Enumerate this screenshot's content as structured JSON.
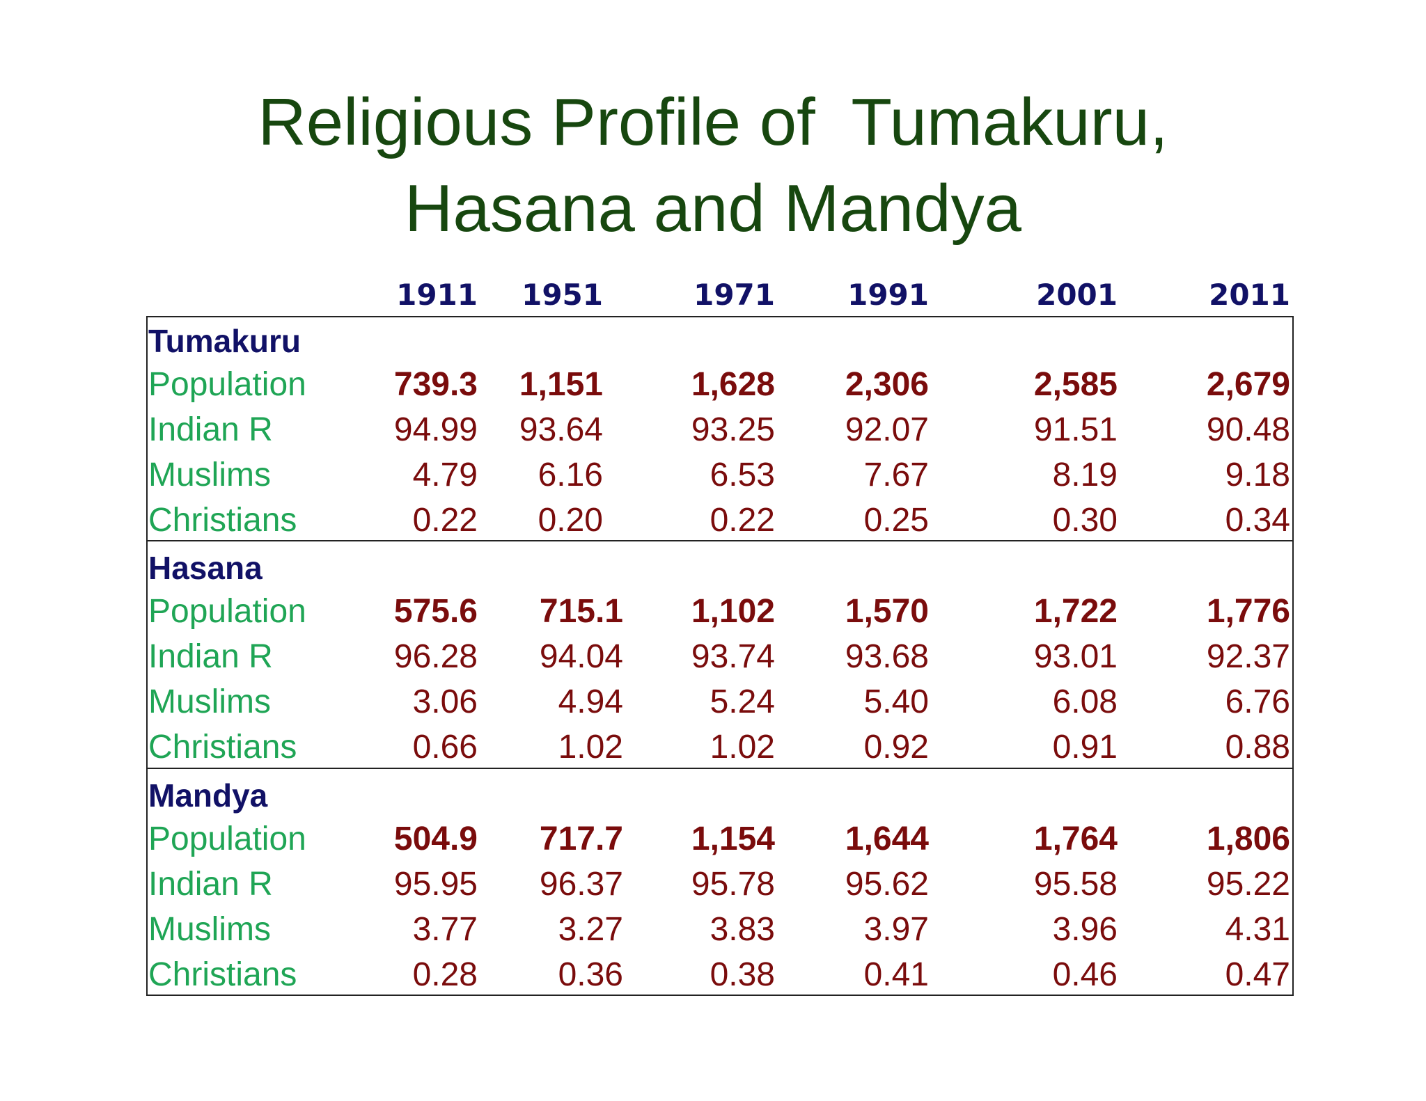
{
  "title": [
    "Religious Profile of  Tumakuru,",
    "Hasana and Mandya"
  ],
  "table": {
    "columns": [
      "1911",
      "1951",
      "1971",
      "1991",
      "2001",
      "2011"
    ],
    "sections": [
      {
        "name": "Tumakuru",
        "rows": [
          {
            "label": "Population",
            "values": [
              "739.3",
              "1,151",
              "1,628",
              "2,306",
              "2,585",
              "2,679"
            ]
          },
          {
            "label": "Indian R",
            "values": [
              "94.99",
              "93.64",
              "93.25",
              "92.07",
              "91.51",
              "90.48"
            ]
          },
          {
            "label": "Muslims",
            "values": [
              "4.79",
              "6.16",
              "6.53",
              "7.67",
              "8.19",
              "9.18"
            ]
          },
          {
            "label": "Christians",
            "values": [
              "0.22",
              "0.20",
              "0.22",
              "0.25",
              "0.30",
              "0.34"
            ]
          }
        ]
      },
      {
        "name": "Hasana",
        "rows": [
          {
            "label": "Population",
            "values": [
              "575.6",
              "715.1",
              "1,102",
              "1,570",
              "1,722",
              "1,776"
            ]
          },
          {
            "label": "Indian R",
            "values": [
              "96.28",
              "94.04",
              "93.74",
              "93.68",
              "93.01",
              "92.37"
            ]
          },
          {
            "label": "Muslims",
            "values": [
              "3.06",
              "4.94",
              "5.24",
              "5.40",
              "6.08",
              "6.76"
            ]
          },
          {
            "label": "Christians",
            "values": [
              "0.66",
              "1.02",
              "1.02",
              "0.92",
              "0.91",
              "0.88"
            ]
          }
        ]
      },
      {
        "name": "Mandya",
        "rows": [
          {
            "label": "Population",
            "values": [
              "504.9",
              "717.7",
              "1,154",
              "1,644",
              "1,764",
              "1,806"
            ]
          },
          {
            "label": "Indian R",
            "values": [
              "95.95",
              "96.37",
              "95.78",
              "95.62",
              "95.58",
              "95.22"
            ]
          },
          {
            "label": "Muslims",
            "values": [
              "3.77",
              "3.27",
              "3.83",
              "3.97",
              "3.96",
              "4.31"
            ]
          },
          {
            "label": "Christians",
            "values": [
              "0.28",
              "0.36",
              "0.38",
              "0.41",
              "0.46",
              "0.47"
            ]
          }
        ]
      }
    ]
  }
}
